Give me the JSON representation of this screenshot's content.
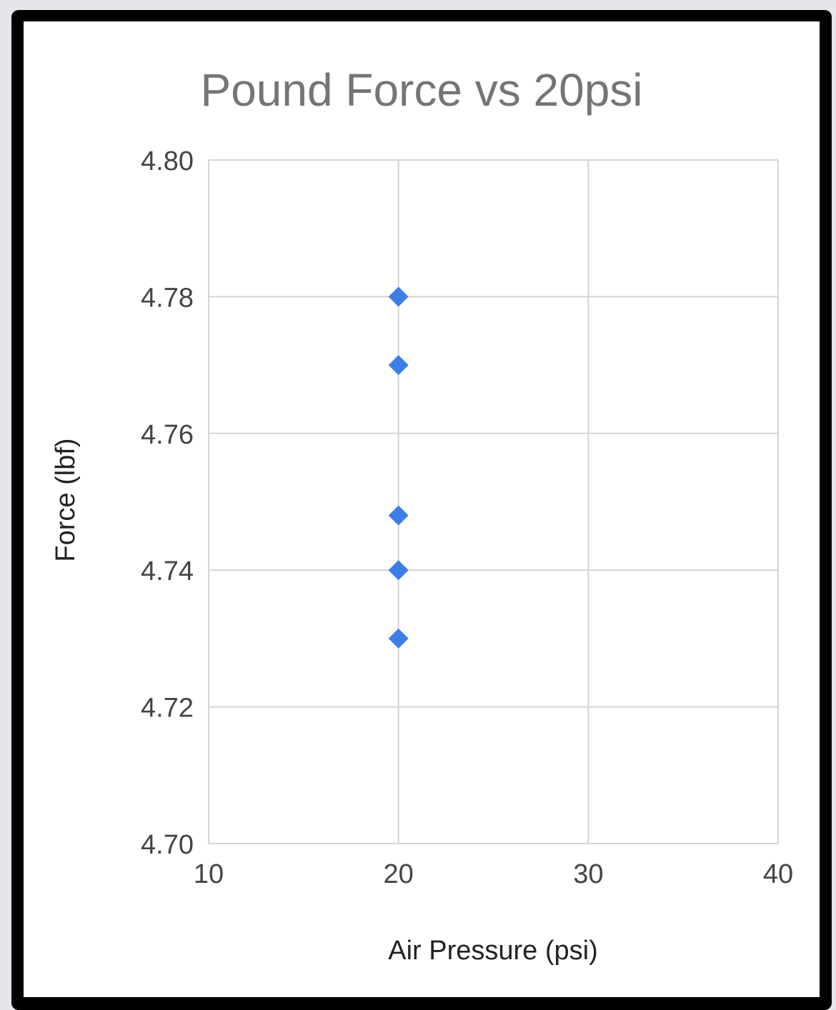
{
  "chart_data": {
    "type": "scatter",
    "title": "Pound Force vs 20psi",
    "xlabel": "Air Pressure (psi)",
    "ylabel": "Force (lbf)",
    "xlim": [
      10,
      40
    ],
    "ylim": [
      4.7,
      4.8
    ],
    "x_ticks": [
      "10",
      "20",
      "30",
      "40"
    ],
    "y_ticks": [
      "4.80",
      "4.78",
      "4.76",
      "4.74",
      "4.72",
      "4.70"
    ],
    "grid": true,
    "marker": "diamond",
    "color": "#3b7ee8",
    "points": [
      {
        "x": 20,
        "y": 4.78
      },
      {
        "x": 20,
        "y": 4.77
      },
      {
        "x": 20,
        "y": 4.748
      },
      {
        "x": 20,
        "y": 4.74
      },
      {
        "x": 20,
        "y": 4.73
      }
    ]
  }
}
